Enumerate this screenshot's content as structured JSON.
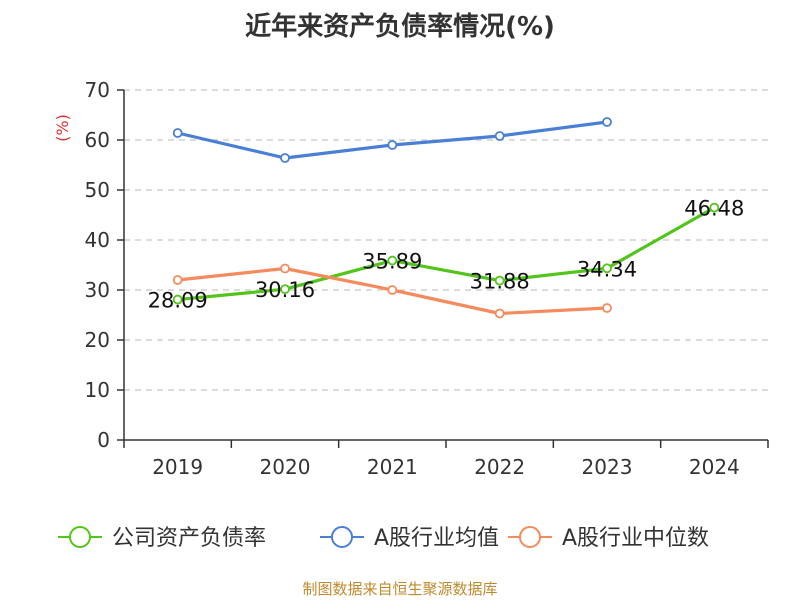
{
  "chart_data": {
    "type": "line",
    "title": "近年来资产负债率情况(%)",
    "ylabel": "(%)",
    "xlabel": "",
    "ylim": [
      0,
      70
    ],
    "yticks": [
      0,
      10,
      20,
      30,
      40,
      50,
      60,
      70
    ],
    "categories": [
      "2019",
      "2020",
      "2021",
      "2022",
      "2023",
      "2024"
    ],
    "grid": true,
    "legend_position": "bottom",
    "series": [
      {
        "name": "公司资产负债率",
        "color": "#52c41a",
        "values": [
          28.09,
          30.16,
          35.89,
          31.88,
          34.34,
          46.48
        ],
        "data_labels": [
          "28.09",
          "30.16",
          "35.89",
          "31.88",
          "34.34",
          "46.48"
        ]
      },
      {
        "name": "A股行业均值",
        "color": "#4a7fd6",
        "values": [
          61.4,
          56.4,
          59.0,
          60.8,
          63.6,
          null
        ]
      },
      {
        "name": "A股行业中位数",
        "color": "#f58a5c",
        "values": [
          32.0,
          34.3,
          30.0,
          25.3,
          26.4,
          null
        ]
      }
    ]
  },
  "source": "制图数据来自恒生聚源数据库"
}
